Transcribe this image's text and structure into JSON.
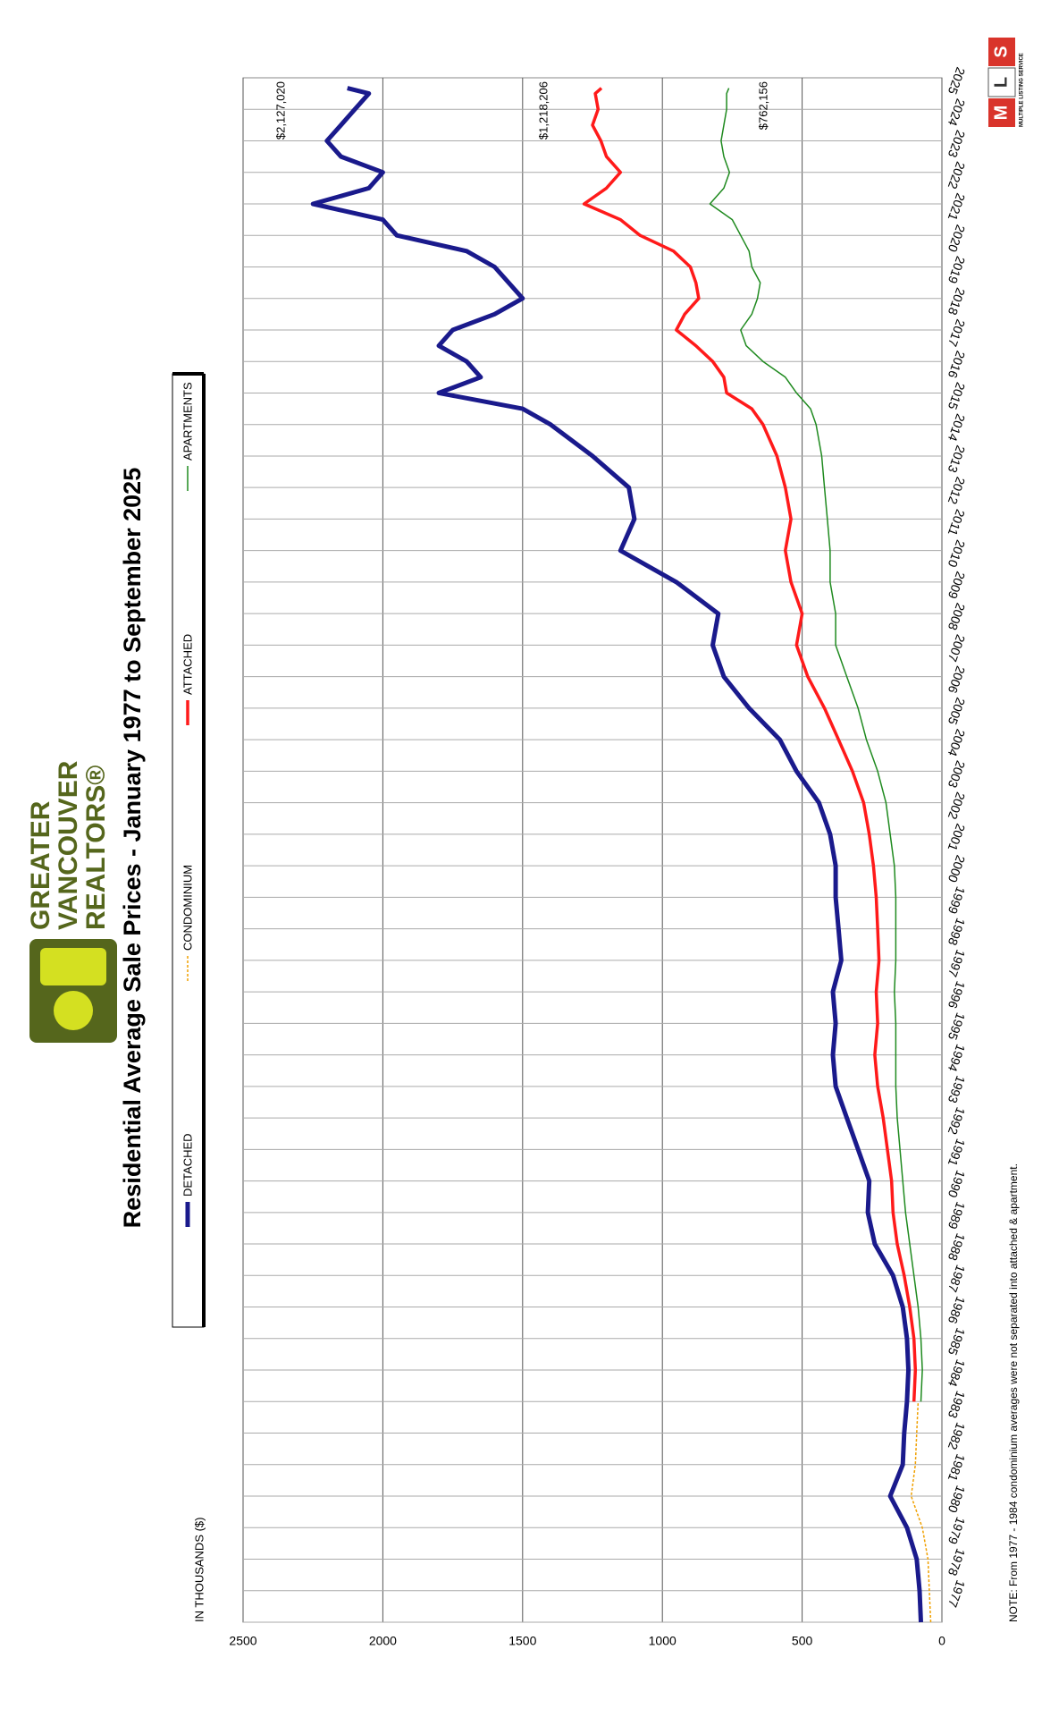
{
  "chart_data": {
    "type": "line",
    "title": "Residential Average Sale Prices  -  January 1977 to September 2025",
    "ylabel": "IN THOUSANDS ($)",
    "note": "NOTE:  From 1977 - 1984 condominium averages were not separated into attached & apartment.",
    "x": [
      1977,
      1978,
      1979,
      1980,
      1981,
      1982,
      1983,
      1984,
      1985,
      1986,
      1987,
      1988,
      1989,
      1990,
      1991,
      1992,
      1993,
      1994,
      1995,
      1996,
      1997,
      1998,
      1999,
      2000,
      2001,
      2002,
      2003,
      2004,
      2005,
      2006,
      2007,
      2008,
      2009,
      2010,
      2011,
      2012,
      2013,
      2014,
      2015,
      2015.5,
      2016,
      2016.5,
      2017,
      2017.5,
      2018,
      2018.5,
      2019,
      2019.5,
      2020,
      2020.5,
      2021,
      2021.5,
      2022,
      2022.5,
      2023,
      2023.5,
      2024,
      2024.5,
      2025,
      2025.5,
      2025.67
    ],
    "series": [
      {
        "name": "DETACHED",
        "color": "#1a1a8c",
        "values": [
          75,
          80,
          90,
          125,
          185,
          140,
          135,
          125,
          120,
          125,
          140,
          175,
          240,
          265,
          260,
          300,
          340,
          380,
          390,
          380,
          390,
          360,
          370,
          380,
          380,
          400,
          440,
          520,
          580,
          690,
          780,
          820,
          800,
          950,
          1150,
          1100,
          1120,
          1250,
          1400,
          1500,
          1800,
          1650,
          1700,
          1800,
          1750,
          1600,
          1500,
          1550,
          1600,
          1700,
          1950,
          2000,
          2250,
          2050,
          2000,
          2150,
          2200,
          2150,
          2100,
          2050,
          2127
        ]
      },
      {
        "name": "CONDOMINIUM",
        "color": "#f0a000",
        "values": [
          40,
          45,
          50,
          70,
          110,
          95,
          90,
          85,
          null,
          null,
          null,
          null,
          null,
          null,
          null,
          null,
          null,
          null,
          null,
          null,
          null,
          null,
          null,
          null,
          null,
          null,
          null,
          null,
          null,
          null,
          null,
          null,
          null,
          null,
          null,
          null,
          null,
          null,
          null,
          null,
          null,
          null,
          null,
          null,
          null,
          null,
          null,
          null,
          null,
          null,
          null,
          null,
          null,
          null,
          null,
          null,
          null,
          null,
          null,
          null,
          null
        ]
      },
      {
        "name": "ATTACHED",
        "color": "#ff1a1a",
        "values": [
          null,
          null,
          null,
          null,
          null,
          null,
          null,
          100,
          95,
          100,
          115,
          135,
          160,
          175,
          180,
          195,
          210,
          230,
          240,
          230,
          235,
          225,
          230,
          235,
          245,
          260,
          280,
          320,
          370,
          420,
          480,
          520,
          500,
          540,
          560,
          540,
          560,
          590,
          640,
          680,
          770,
          780,
          820,
          880,
          950,
          920,
          870,
          880,
          900,
          960,
          1080,
          1150,
          1280,
          1200,
          1150,
          1200,
          1220,
          1250,
          1230,
          1240,
          1218
        ]
      },
      {
        "name": "APARTMENTS",
        "color": "#1f8a1f",
        "values": [
          null,
          null,
          null,
          null,
          null,
          null,
          null,
          75,
          70,
          75,
          85,
          100,
          115,
          130,
          140,
          150,
          160,
          165,
          165,
          165,
          170,
          165,
          165,
          165,
          170,
          185,
          200,
          230,
          270,
          300,
          340,
          380,
          380,
          400,
          400,
          410,
          420,
          430,
          450,
          470,
          520,
          560,
          640,
          700,
          720,
          680,
          660,
          650,
          680,
          690,
          720,
          750,
          830,
          780,
          760,
          780,
          790,
          780,
          770,
          770,
          762
        ]
      }
    ],
    "annotations": [
      "$2,127,020",
      "$1,218,206",
      "$762,156"
    ],
    "xlim": [
      1977,
      2026
    ],
    "xticks": [
      1977,
      1978,
      1979,
      1980,
      1981,
      1982,
      1983,
      1984,
      1985,
      1986,
      1987,
      1988,
      1989,
      1990,
      1991,
      1992,
      1993,
      1994,
      1995,
      1996,
      1997,
      1998,
      1999,
      2000,
      2001,
      2002,
      2003,
      2004,
      2005,
      2006,
      2007,
      2008,
      2009,
      2010,
      2011,
      2012,
      2013,
      2014,
      2015,
      2016,
      2017,
      2018,
      2019,
      2020,
      2021,
      2022,
      2023,
      2024,
      2025
    ],
    "ylim": [
      0,
      2500
    ],
    "yticks": [
      0,
      500,
      1000,
      1500,
      2000,
      2500
    ],
    "grid": true
  },
  "logo": {
    "lines": [
      "GREATER",
      "VANCOUVER",
      "REALTORS®"
    ]
  },
  "mls": {
    "letters": [
      "M",
      "L",
      "S"
    ],
    "caption": "MULTIPLE LISTING SERVICE"
  }
}
